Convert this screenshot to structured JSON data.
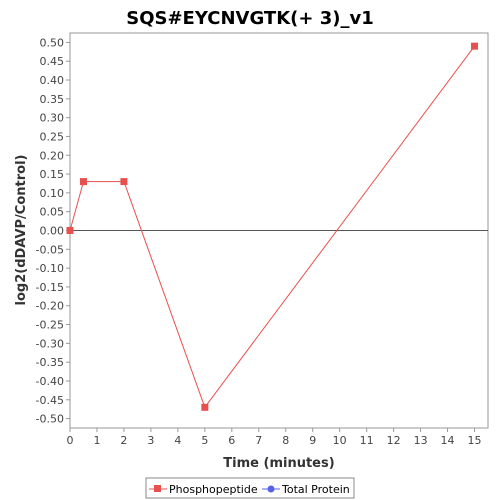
{
  "chart_data": {
    "type": "line",
    "title": "SQS#EYCNVGTK(+ 3)_v1",
    "xlabel": "Time (minutes)",
    "ylabel": "log2(dDAVP/Control)",
    "xlim": [
      0,
      15.5
    ],
    "ylim": [
      -0.525,
      0.525
    ],
    "x_ticks": [
      0,
      1,
      2,
      3,
      4,
      5,
      6,
      7,
      8,
      9,
      10,
      11,
      12,
      13,
      14,
      15
    ],
    "y_ticks": [
      0.5,
      0.45,
      0.4,
      0.35,
      0.3,
      0.25,
      0.2,
      0.15,
      0.1,
      0.05,
      0.0,
      -0.05,
      -0.1,
      -0.15,
      -0.2,
      -0.25,
      -0.3,
      -0.35,
      -0.4,
      -0.45,
      -0.5
    ],
    "y_tick_labels": [
      "0.50",
      "0.45",
      "0.40",
      "0.35",
      "0.30",
      "0.25",
      "0.20",
      "0.15",
      "0.10",
      "0.05",
      "0.00",
      "-0.05",
      "-0.10",
      "-0.15",
      "-0.20",
      "-0.25",
      "-0.30",
      "-0.35",
      "-0.40",
      "-0.45",
      "-0.50"
    ],
    "zero_line": true,
    "legend_position": "bottom",
    "series": [
      {
        "name": "Phosphopeptide",
        "color": "#e8504f",
        "marker": "square",
        "x": [
          0,
          0.5,
          2,
          5,
          15
        ],
        "y": [
          0.0,
          0.13,
          0.13,
          -0.47,
          0.49
        ]
      },
      {
        "name": "Total Protein",
        "color": "#5560e8",
        "marker": "circle",
        "x": [],
        "y": []
      }
    ]
  }
}
